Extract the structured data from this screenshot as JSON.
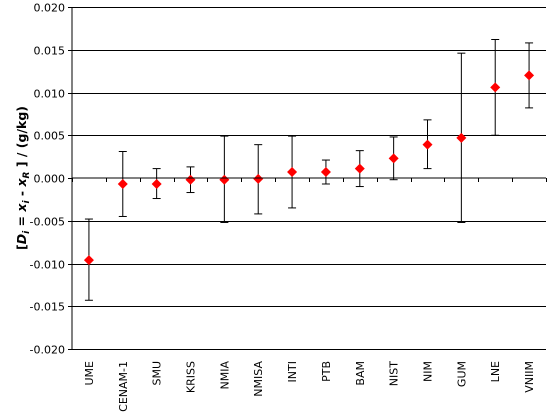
{
  "chart_data": {
    "type": "scatter",
    "ylabel_parts": {
      "open": "[",
      "d": "D",
      "d_sub": "i",
      "eq": " = ",
      "x": "x",
      "x_sub": "i",
      "minus": " - ",
      "xr": "x",
      "xr_sub": "R",
      "close": " ]  / (g/kg)"
    },
    "ylim": [
      -0.02,
      0.02
    ],
    "yticks": [
      "0.020",
      "0.015",
      "0.010",
      "0.005",
      "0.000",
      "-0.005",
      "-0.010",
      "-0.015",
      "-0.020"
    ],
    "ytick_values": [
      0.02,
      0.015,
      0.01,
      0.005,
      0.0,
      -0.005,
      -0.01,
      -0.015,
      -0.02
    ],
    "categories": [
      "UME",
      "CENAM-1",
      "SMU",
      "KRISS",
      "NMIA",
      "NMISA",
      "INTI",
      "PTB",
      "BAM",
      "NIST",
      "NIM",
      "GUM",
      "LNE",
      "VNIIM"
    ],
    "values": [
      -0.0096,
      -0.0007,
      -0.0007,
      -0.0002,
      -0.0002,
      -0.0001,
      0.0007,
      0.0007,
      0.0011,
      0.0023,
      0.0039,
      0.0047,
      0.0106,
      0.012
    ],
    "err_low": [
      -0.0143,
      -0.0045,
      -0.0024,
      -0.0017,
      -0.0052,
      -0.0042,
      -0.0035,
      -0.0007,
      -0.001,
      -0.0002,
      0.0011,
      -0.0052,
      0.005,
      0.0082
    ],
    "err_high": [
      -0.0048,
      0.0031,
      0.0011,
      0.0013,
      0.0049,
      0.0039,
      0.0049,
      0.0021,
      0.0032,
      0.0048,
      0.0068,
      0.0146,
      0.0162,
      0.0158
    ],
    "grid": true,
    "marker_color": "#ff0000",
    "errorbar_color": "#000000",
    "grid_color": "#000000"
  }
}
